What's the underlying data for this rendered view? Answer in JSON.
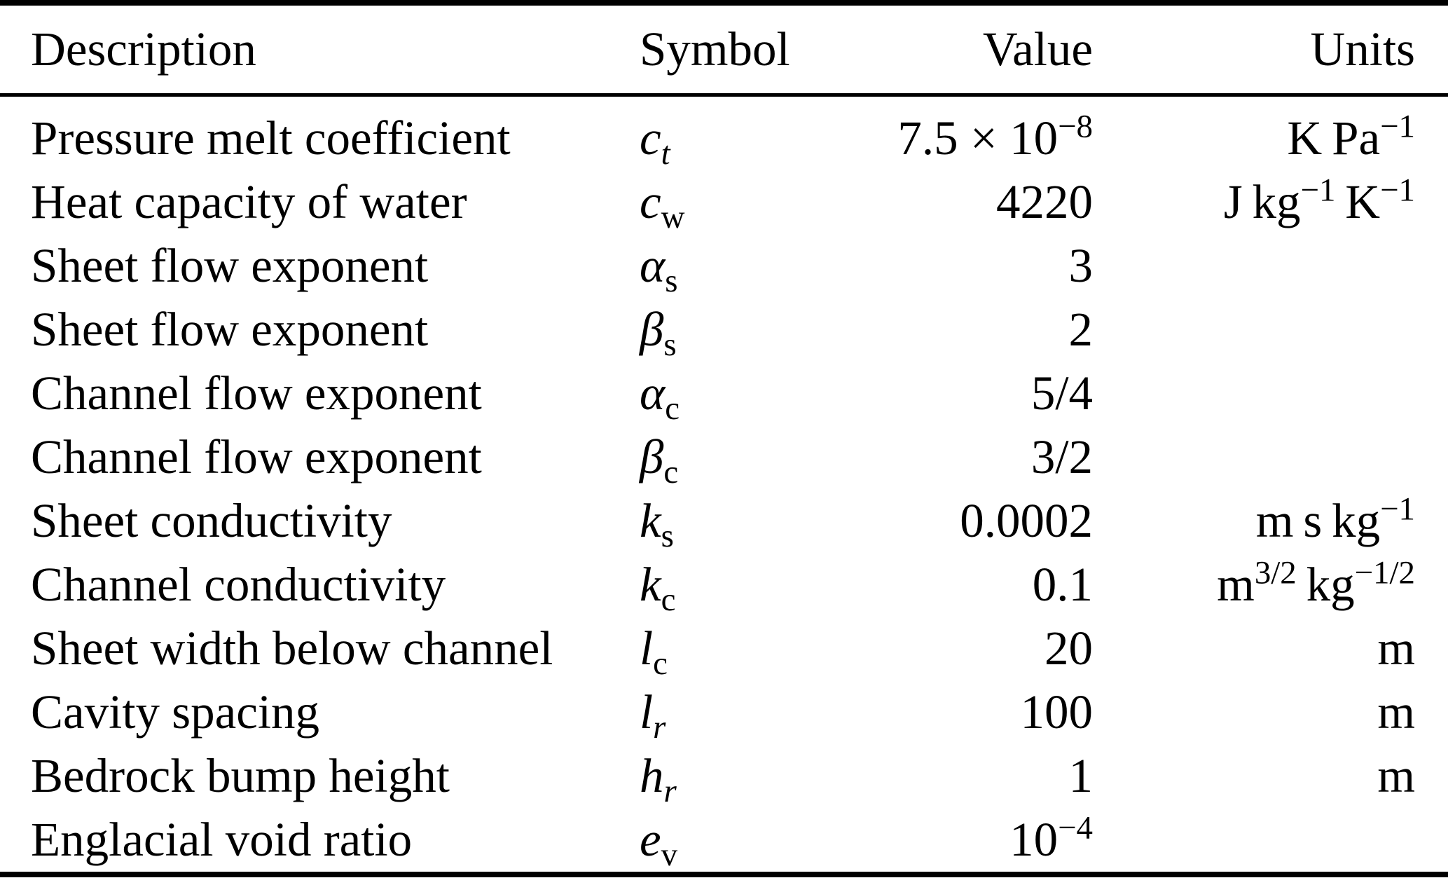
{
  "page": {
    "background": "#ffffff",
    "text_color": "#000000"
  },
  "table": {
    "headers": {
      "description": "Description",
      "symbol": "Symbol",
      "value": "Value",
      "units": "Units"
    },
    "rows": [
      {
        "description": "Pressure melt coefficient",
        "symbol": [
          {
            "t": "c",
            "s": "i"
          },
          {
            "t": "t",
            "s": "isub"
          }
        ],
        "value": [
          {
            "t": "7.5 × 10"
          },
          {
            "t": "−8",
            "s": "sup"
          }
        ],
        "units": [
          {
            "t": "K Pa"
          },
          {
            "t": "−1",
            "s": "sup"
          }
        ]
      },
      {
        "description": "Heat capacity of water",
        "symbol": [
          {
            "t": "c",
            "s": "i"
          },
          {
            "t": "w",
            "s": "sub"
          }
        ],
        "value": [
          {
            "t": "4220"
          }
        ],
        "units": [
          {
            "t": "J kg"
          },
          {
            "t": "−1",
            "s": "sup"
          },
          {
            "t": " K"
          },
          {
            "t": "−1",
            "s": "sup"
          }
        ]
      },
      {
        "description": "Sheet flow exponent",
        "symbol": [
          {
            "t": "α",
            "s": "i"
          },
          {
            "t": "s",
            "s": "sub"
          }
        ],
        "value": [
          {
            "t": "3"
          }
        ],
        "units": []
      },
      {
        "description": "Sheet flow exponent",
        "symbol": [
          {
            "t": "β",
            "s": "i"
          },
          {
            "t": "s",
            "s": "sub"
          }
        ],
        "value": [
          {
            "t": "2"
          }
        ],
        "units": []
      },
      {
        "description": "Channel flow exponent",
        "symbol": [
          {
            "t": "α",
            "s": "i"
          },
          {
            "t": "c",
            "s": "sub"
          }
        ],
        "value": [
          {
            "t": "5/4"
          }
        ],
        "units": []
      },
      {
        "description": "Channel flow exponent",
        "symbol": [
          {
            "t": "β",
            "s": "i"
          },
          {
            "t": "c",
            "s": "sub"
          }
        ],
        "value": [
          {
            "t": "3/2"
          }
        ],
        "units": []
      },
      {
        "description": "Sheet conductivity",
        "symbol": [
          {
            "t": "k",
            "s": "i"
          },
          {
            "t": "s",
            "s": "sub"
          }
        ],
        "value": [
          {
            "t": "0.0002"
          }
        ],
        "units": [
          {
            "t": "m s kg"
          },
          {
            "t": "−1",
            "s": "sup"
          }
        ]
      },
      {
        "description": "Channel conductivity",
        "symbol": [
          {
            "t": "k",
            "s": "i"
          },
          {
            "t": "c",
            "s": "sub"
          }
        ],
        "value": [
          {
            "t": "0.1"
          }
        ],
        "units": [
          {
            "t": "m"
          },
          {
            "t": "3/2",
            "s": "sup"
          },
          {
            "t": " kg"
          },
          {
            "t": "−1/2",
            "s": "sup"
          }
        ]
      },
      {
        "description": "Sheet width below channel",
        "symbol": [
          {
            "t": "l",
            "s": "i"
          },
          {
            "t": "c",
            "s": "sub"
          }
        ],
        "value": [
          {
            "t": "20"
          }
        ],
        "units": [
          {
            "t": "m"
          }
        ]
      },
      {
        "description": "Cavity spacing",
        "symbol": [
          {
            "t": "l",
            "s": "i"
          },
          {
            "t": "r",
            "s": "isub"
          }
        ],
        "value": [
          {
            "t": "100"
          }
        ],
        "units": [
          {
            "t": "m"
          }
        ]
      },
      {
        "description": "Bedrock bump height",
        "symbol": [
          {
            "t": "h",
            "s": "i"
          },
          {
            "t": "r",
            "s": "isub"
          }
        ],
        "value": [
          {
            "t": "1"
          }
        ],
        "units": [
          {
            "t": "m"
          }
        ]
      },
      {
        "description": "Englacial void ratio",
        "symbol": [
          {
            "t": "e",
            "s": "i"
          },
          {
            "t": "v",
            "s": "sub"
          }
        ],
        "value": [
          {
            "t": "10"
          },
          {
            "t": "−4",
            "s": "sup"
          }
        ],
        "units": []
      }
    ]
  }
}
